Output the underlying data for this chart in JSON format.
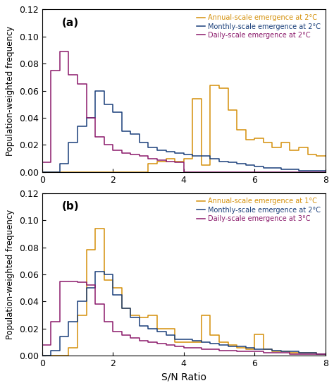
{
  "panel_a": {
    "label": "(a)",
    "legend": [
      "Annual-scale emergence at 2°C",
      "Monthly-scale emergence at 2°C",
      "Daily-scale emergence at 2°C"
    ],
    "colors": [
      "#D4900A",
      "#1A3F7A",
      "#8B1A6B"
    ],
    "series": {
      "annual": {
        "edges": [
          0.0,
          0.25,
          0.5,
          0.75,
          1.0,
          1.25,
          1.5,
          1.75,
          2.0,
          2.25,
          2.5,
          2.75,
          3.0,
          3.25,
          3.5,
          3.75,
          4.0,
          4.25,
          4.5,
          4.75,
          5.0,
          5.25,
          5.5,
          5.75,
          6.0,
          6.25,
          6.5,
          6.75,
          7.0,
          7.25,
          7.5,
          7.75,
          8.0
        ],
        "vals": [
          0.0,
          0.0,
          0.0,
          0.0,
          0.0,
          0.0,
          0.0,
          0.0,
          0.0,
          0.0,
          0.0,
          0.0,
          0.006,
          0.008,
          0.01,
          0.008,
          0.01,
          0.054,
          0.005,
          0.064,
          0.062,
          0.046,
          0.031,
          0.024,
          0.025,
          0.022,
          0.018,
          0.022,
          0.016,
          0.018,
          0.013,
          0.012
        ]
      },
      "monthly": {
        "edges": [
          0.0,
          0.25,
          0.5,
          0.75,
          1.0,
          1.25,
          1.5,
          1.75,
          2.0,
          2.25,
          2.5,
          2.75,
          3.0,
          3.25,
          3.5,
          3.75,
          4.0,
          4.25,
          4.5,
          4.75,
          5.0,
          5.25,
          5.5,
          5.75,
          6.0,
          6.25,
          6.5,
          6.75,
          7.0,
          7.25,
          7.5,
          7.75,
          8.0
        ],
        "vals": [
          0.0,
          0.0,
          0.006,
          0.022,
          0.034,
          0.04,
          0.06,
          0.05,
          0.044,
          0.03,
          0.028,
          0.022,
          0.018,
          0.016,
          0.015,
          0.014,
          0.013,
          0.012,
          0.012,
          0.01,
          0.008,
          0.007,
          0.006,
          0.005,
          0.004,
          0.003,
          0.003,
          0.002,
          0.002,
          0.001,
          0.001,
          0.001
        ]
      },
      "daily": {
        "edges": [
          0.0,
          0.25,
          0.5,
          0.75,
          1.0,
          1.25,
          1.5,
          1.75,
          2.0,
          2.25,
          2.5,
          2.75,
          3.0,
          3.25,
          3.5,
          3.75,
          4.0,
          4.25,
          4.5,
          4.75,
          5.0,
          5.25,
          5.5,
          5.75,
          6.0,
          6.25,
          6.5,
          6.75,
          7.0,
          7.25,
          7.5,
          7.75,
          8.0
        ],
        "vals": [
          0.007,
          0.075,
          0.089,
          0.072,
          0.065,
          0.04,
          0.026,
          0.02,
          0.016,
          0.014,
          0.013,
          0.012,
          0.01,
          0.009,
          0.008,
          0.007,
          0.0,
          0.0,
          0.0,
          0.0,
          0.0,
          0.0,
          0.0,
          0.0,
          0.0,
          0.0,
          0.0,
          0.0,
          0.0,
          0.0,
          0.0,
          0.0
        ]
      }
    }
  },
  "panel_b": {
    "label": "(b)",
    "legend": [
      "Annual-scale emergence at 1°C",
      "Monthly-scale emergence at 2°C",
      "Daily-scale emergence at 3°C"
    ],
    "colors": [
      "#D4900A",
      "#1A3F7A",
      "#8B1A6B"
    ],
    "series": {
      "annual": {
        "edges": [
          0.0,
          0.25,
          0.5,
          0.75,
          1.0,
          1.25,
          1.5,
          1.75,
          2.0,
          2.25,
          2.5,
          2.75,
          3.0,
          3.25,
          3.5,
          3.75,
          4.0,
          4.25,
          4.5,
          4.75,
          5.0,
          5.25,
          5.5,
          5.75,
          6.0,
          6.25,
          6.5,
          6.75,
          7.0,
          7.25,
          7.5,
          7.75,
          8.0
        ],
        "vals": [
          0.0,
          0.0,
          0.0,
          0.006,
          0.03,
          0.078,
          0.094,
          0.056,
          0.05,
          0.035,
          0.03,
          0.028,
          0.03,
          0.02,
          0.02,
          0.01,
          0.01,
          0.01,
          0.03,
          0.015,
          0.01,
          0.008,
          0.006,
          0.005,
          0.016,
          0.005,
          0.003,
          0.003,
          0.002,
          0.002,
          0.002,
          0.001
        ]
      },
      "monthly": {
        "edges": [
          0.0,
          0.25,
          0.5,
          0.75,
          1.0,
          1.25,
          1.5,
          1.75,
          2.0,
          2.25,
          2.5,
          2.75,
          3.0,
          3.25,
          3.5,
          3.75,
          4.0,
          4.25,
          4.5,
          4.75,
          5.0,
          5.25,
          5.5,
          5.75,
          6.0,
          6.25,
          6.5,
          6.75,
          7.0,
          7.25,
          7.5,
          7.75,
          8.0
        ],
        "vals": [
          0.0,
          0.004,
          0.014,
          0.025,
          0.04,
          0.05,
          0.062,
          0.06,
          0.045,
          0.035,
          0.028,
          0.022,
          0.02,
          0.018,
          0.015,
          0.012,
          0.012,
          0.011,
          0.01,
          0.009,
          0.008,
          0.007,
          0.007,
          0.006,
          0.005,
          0.005,
          0.004,
          0.003,
          0.003,
          0.002,
          0.002,
          0.001
        ]
      },
      "daily": {
        "edges": [
          0.0,
          0.25,
          0.5,
          0.75,
          1.0,
          1.25,
          1.5,
          1.75,
          2.0,
          2.25,
          2.5,
          2.75,
          3.0,
          3.25,
          3.5,
          3.75,
          4.0,
          4.25,
          4.5,
          4.75,
          5.0,
          5.25,
          5.5,
          5.75,
          6.0,
          6.25,
          6.5,
          6.75,
          7.0,
          7.25,
          7.5,
          7.75,
          8.0
        ],
        "vals": [
          0.008,
          0.025,
          0.055,
          0.055,
          0.054,
          0.052,
          0.038,
          0.025,
          0.018,
          0.015,
          0.013,
          0.011,
          0.01,
          0.009,
          0.008,
          0.007,
          0.006,
          0.006,
          0.005,
          0.005,
          0.004,
          0.004,
          0.003,
          0.003,
          0.003,
          0.002,
          0.002,
          0.002,
          0.001,
          0.001,
          0.001,
          0.001
        ]
      }
    }
  },
  "xlim": [
    0,
    8
  ],
  "ylim": [
    0,
    0.12
  ],
  "yticks": [
    0,
    0.02,
    0.04,
    0.06,
    0.08,
    0.1,
    0.12
  ],
  "xticks": [
    0,
    2,
    4,
    6,
    8
  ],
  "xlabel": "S/N Ratio",
  "ylabel": "Population-weighted frequency",
  "bg_color": "#FFFFFF"
}
